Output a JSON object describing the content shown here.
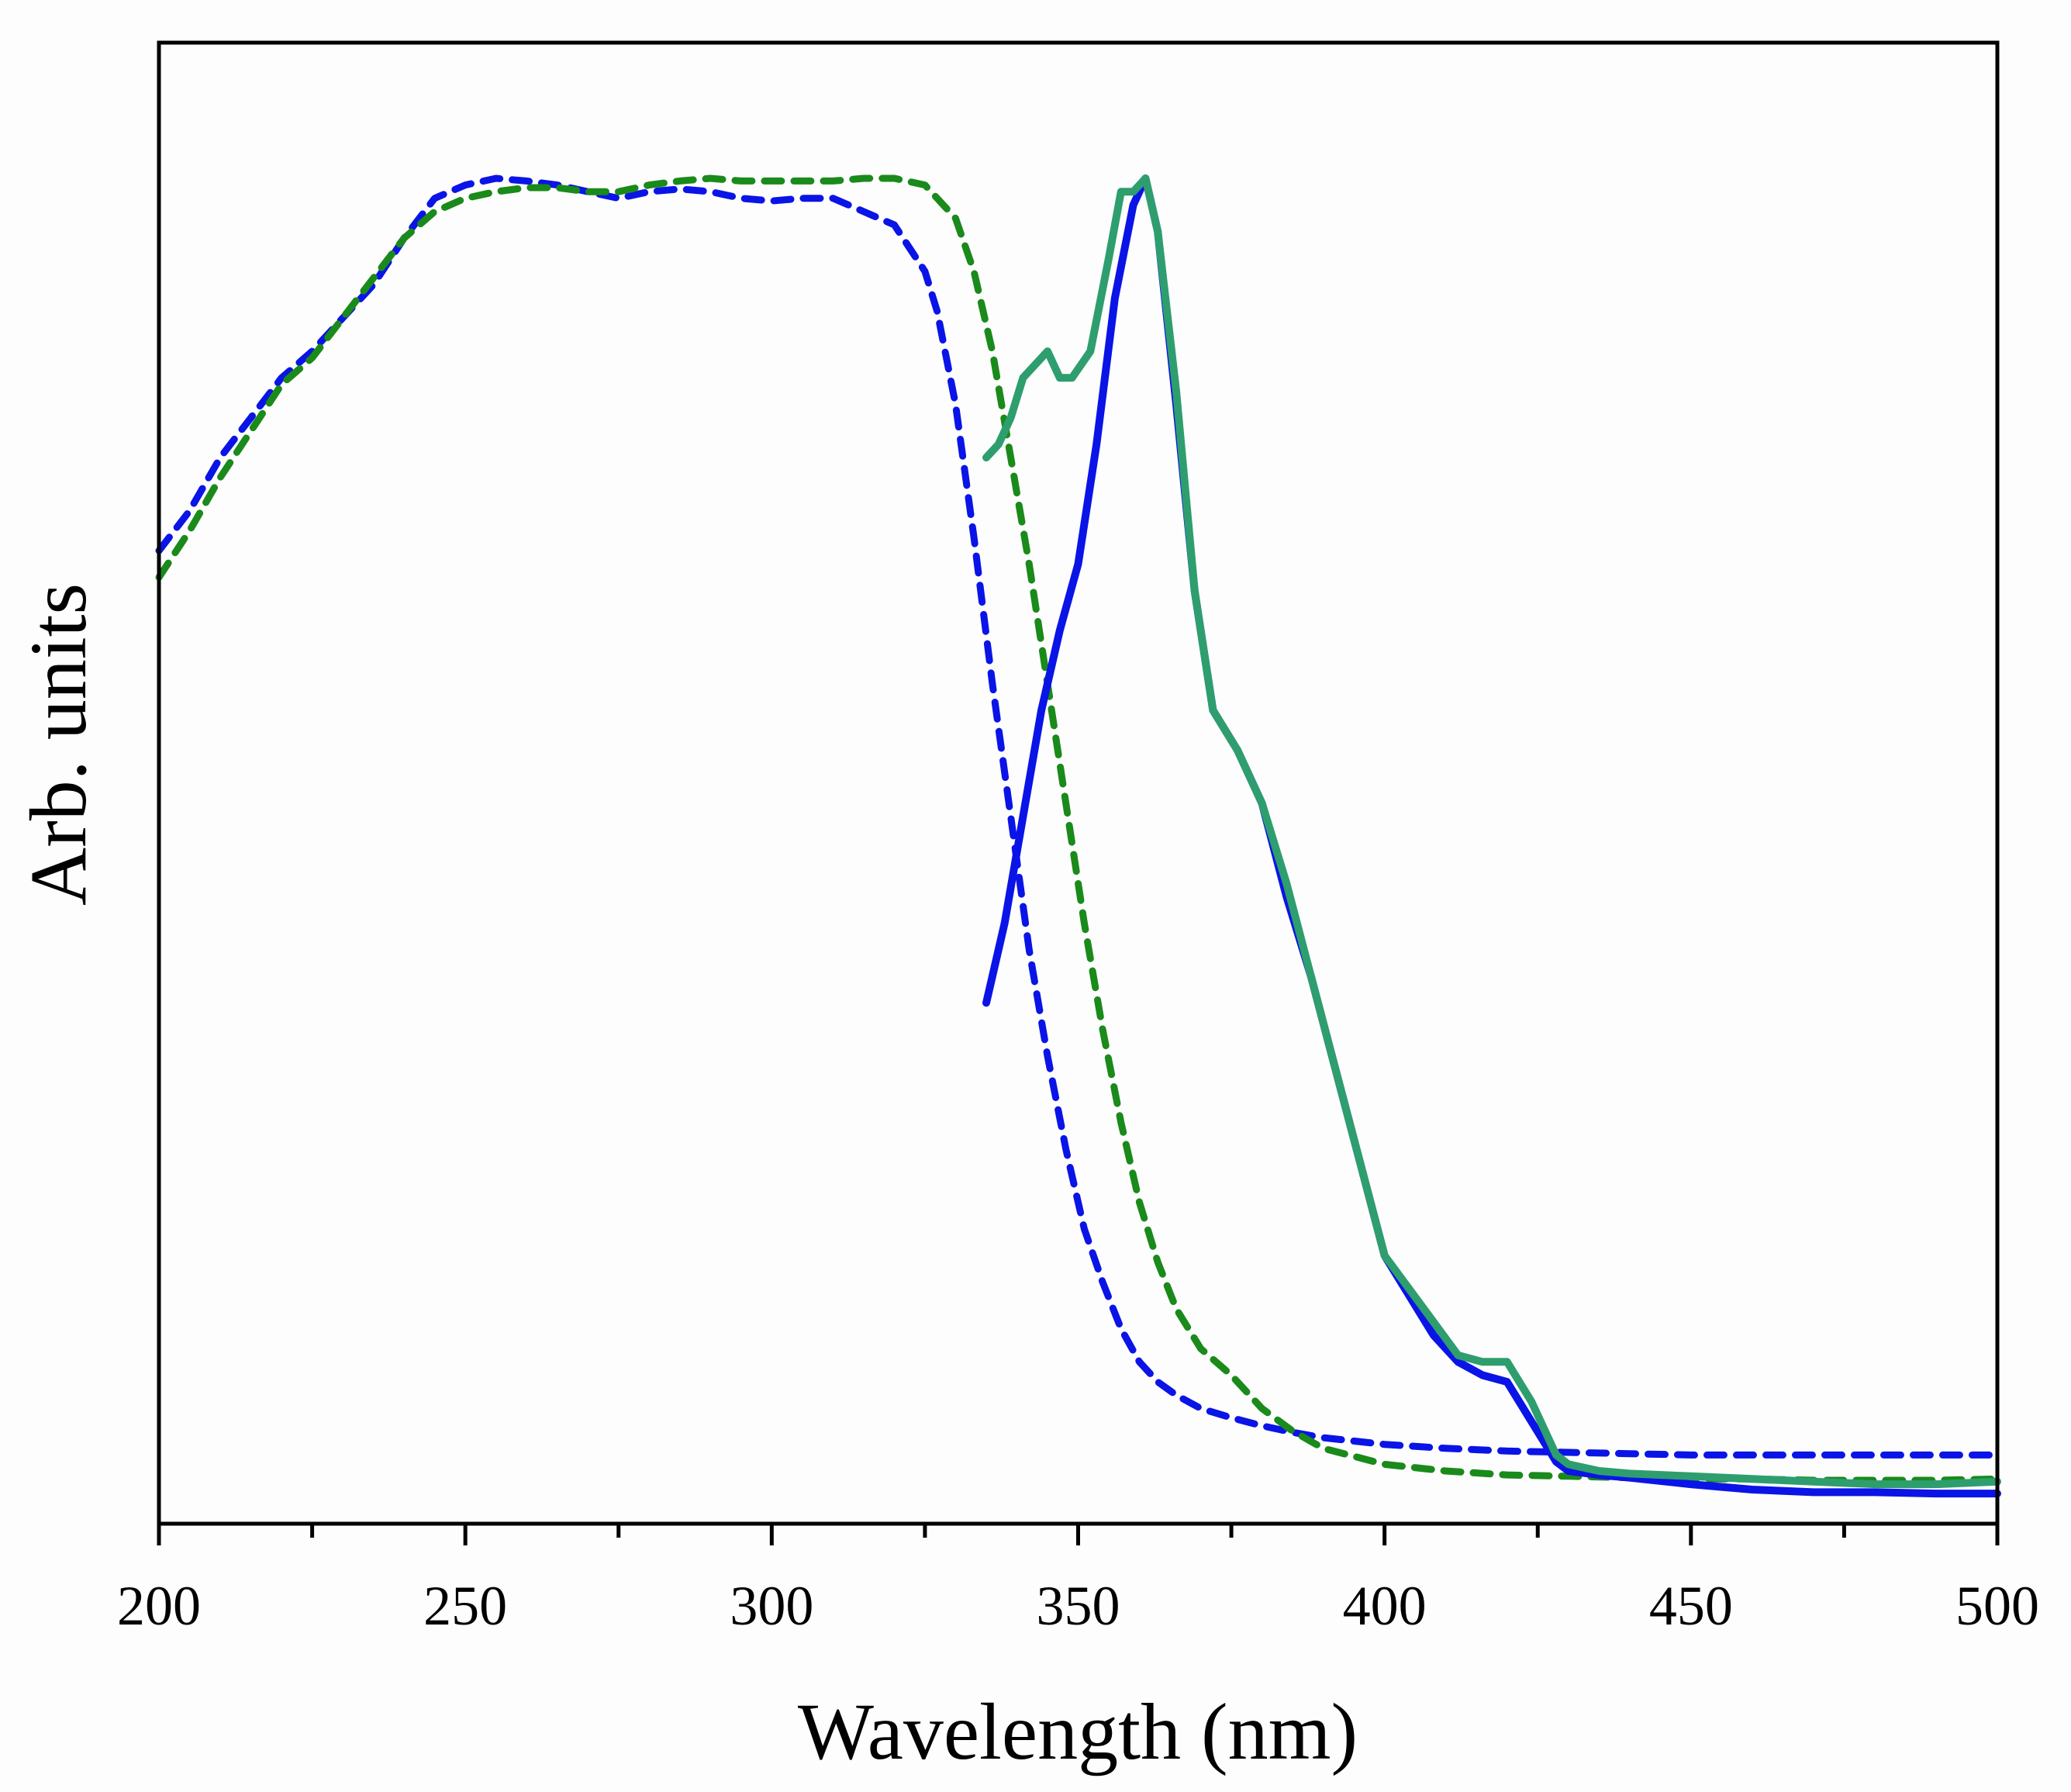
{
  "chart_data": {
    "type": "line",
    "title": "",
    "xlabel": "Wavelength (nm)",
    "ylabel": "Arb. units",
    "xlim": [
      200,
      500
    ],
    "ylim": [
      0,
      1.0
    ],
    "x_ticks": [
      200,
      250,
      300,
      350,
      400,
      450,
      500
    ],
    "x_minor_step": 25,
    "y_ticks_shown": false,
    "grid": false,
    "legend": "none",
    "series": [
      {
        "color": "#0a14e6",
        "style": "dashed",
        "x": [
          200,
          205,
          210,
          215,
          220,
          225,
          230,
          235,
          240,
          245,
          250,
          255,
          260,
          265,
          270,
          275,
          280,
          285,
          290,
          295,
          300,
          305,
          310,
          315,
          320,
          325,
          327,
          330,
          333,
          336,
          339,
          342,
          345,
          348,
          351,
          354,
          357,
          360,
          363,
          366,
          370,
          375,
          380,
          385,
          390,
          400,
          410,
          420,
          430,
          440,
          450,
          460,
          470,
          480,
          490,
          500
        ],
        "y": [
          0.72,
          0.75,
          0.79,
          0.82,
          0.85,
          0.87,
          0.895,
          0.92,
          0.955,
          0.985,
          0.995,
          1.0,
          0.998,
          0.995,
          0.99,
          0.985,
          0.99,
          0.992,
          0.99,
          0.985,
          0.983,
          0.985,
          0.985,
          0.975,
          0.965,
          0.93,
          0.9,
          0.83,
          0.73,
          0.62,
          0.52,
          0.42,
          0.34,
          0.27,
          0.21,
          0.17,
          0.135,
          0.11,
          0.095,
          0.085,
          0.075,
          0.068,
          0.062,
          0.057,
          0.053,
          0.048,
          0.045,
          0.043,
          0.042,
          0.041,
          0.04,
          0.04,
          0.04,
          0.04,
          0.04,
          0.04
        ]
      },
      {
        "color": "#1a8a1a",
        "style": "dashed",
        "x": [
          200,
          205,
          210,
          215,
          220,
          225,
          230,
          235,
          240,
          245,
          250,
          255,
          260,
          265,
          270,
          275,
          280,
          285,
          290,
          295,
          300,
          305,
          310,
          315,
          320,
          325,
          330,
          333,
          336,
          339,
          342,
          345,
          348,
          351,
          354,
          357,
          360,
          363,
          366,
          370,
          375,
          380,
          385,
          390,
          400,
          410,
          420,
          430,
          440,
          450,
          460,
          470,
          480,
          490,
          500
        ],
        "y": [
          0.7,
          0.735,
          0.775,
          0.81,
          0.845,
          0.865,
          0.895,
          0.925,
          0.955,
          0.975,
          0.985,
          0.99,
          0.993,
          0.993,
          0.99,
          0.99,
          0.995,
          0.998,
          1.0,
          0.998,
          0.998,
          0.998,
          0.998,
          1.0,
          1.0,
          0.995,
          0.97,
          0.93,
          0.87,
          0.79,
          0.71,
          0.62,
          0.53,
          0.44,
          0.36,
          0.29,
          0.23,
          0.185,
          0.15,
          0.12,
          0.1,
          0.075,
          0.058,
          0.045,
          0.033,
          0.028,
          0.025,
          0.024,
          0.023,
          0.022,
          0.022,
          0.021,
          0.021,
          0.021,
          0.022
        ]
      },
      {
        "color": "#0a14e6",
        "style": "solid",
        "x": [
          335,
          338,
          341,
          344,
          347,
          350,
          353,
          356,
          359,
          361,
          363,
          366,
          369,
          372,
          376,
          380,
          384,
          388,
          392,
          396,
          400,
          404,
          408,
          412,
          416,
          420,
          424,
          428,
          430,
          435,
          440,
          450,
          460,
          470,
          480,
          490,
          500
        ],
        "y": [
          0.38,
          0.44,
          0.52,
          0.6,
          0.66,
          0.71,
          0.8,
          0.91,
          0.98,
          1.0,
          0.96,
          0.83,
          0.69,
          0.6,
          0.57,
          0.53,
          0.46,
          0.4,
          0.33,
          0.26,
          0.19,
          0.16,
          0.13,
          0.11,
          0.1,
          0.095,
          0.065,
          0.035,
          0.028,
          0.025,
          0.023,
          0.018,
          0.014,
          0.012,
          0.012,
          0.011,
          0.011
        ]
      },
      {
        "color": "#2e9e6e",
        "style": "solid",
        "x": [
          335,
          337,
          339,
          341,
          343,
          345,
          347,
          349,
          352,
          355,
          357,
          359,
          361,
          363,
          366,
          369,
          372,
          376,
          380,
          384,
          388,
          392,
          396,
          400,
          404,
          408,
          412,
          416,
          420,
          424,
          428,
          430,
          435,
          440,
          450,
          460,
          470,
          480,
          490,
          500
        ],
        "y": [
          0.79,
          0.8,
          0.82,
          0.85,
          0.86,
          0.87,
          0.85,
          0.85,
          0.87,
          0.94,
          0.99,
          0.99,
          1.0,
          0.96,
          0.84,
          0.69,
          0.6,
          0.57,
          0.53,
          0.47,
          0.4,
          0.33,
          0.26,
          0.19,
          0.165,
          0.14,
          0.115,
          0.11,
          0.11,
          0.08,
          0.04,
          0.033,
          0.028,
          0.026,
          0.024,
          0.022,
          0.02,
          0.018,
          0.018,
          0.02
        ]
      }
    ]
  }
}
